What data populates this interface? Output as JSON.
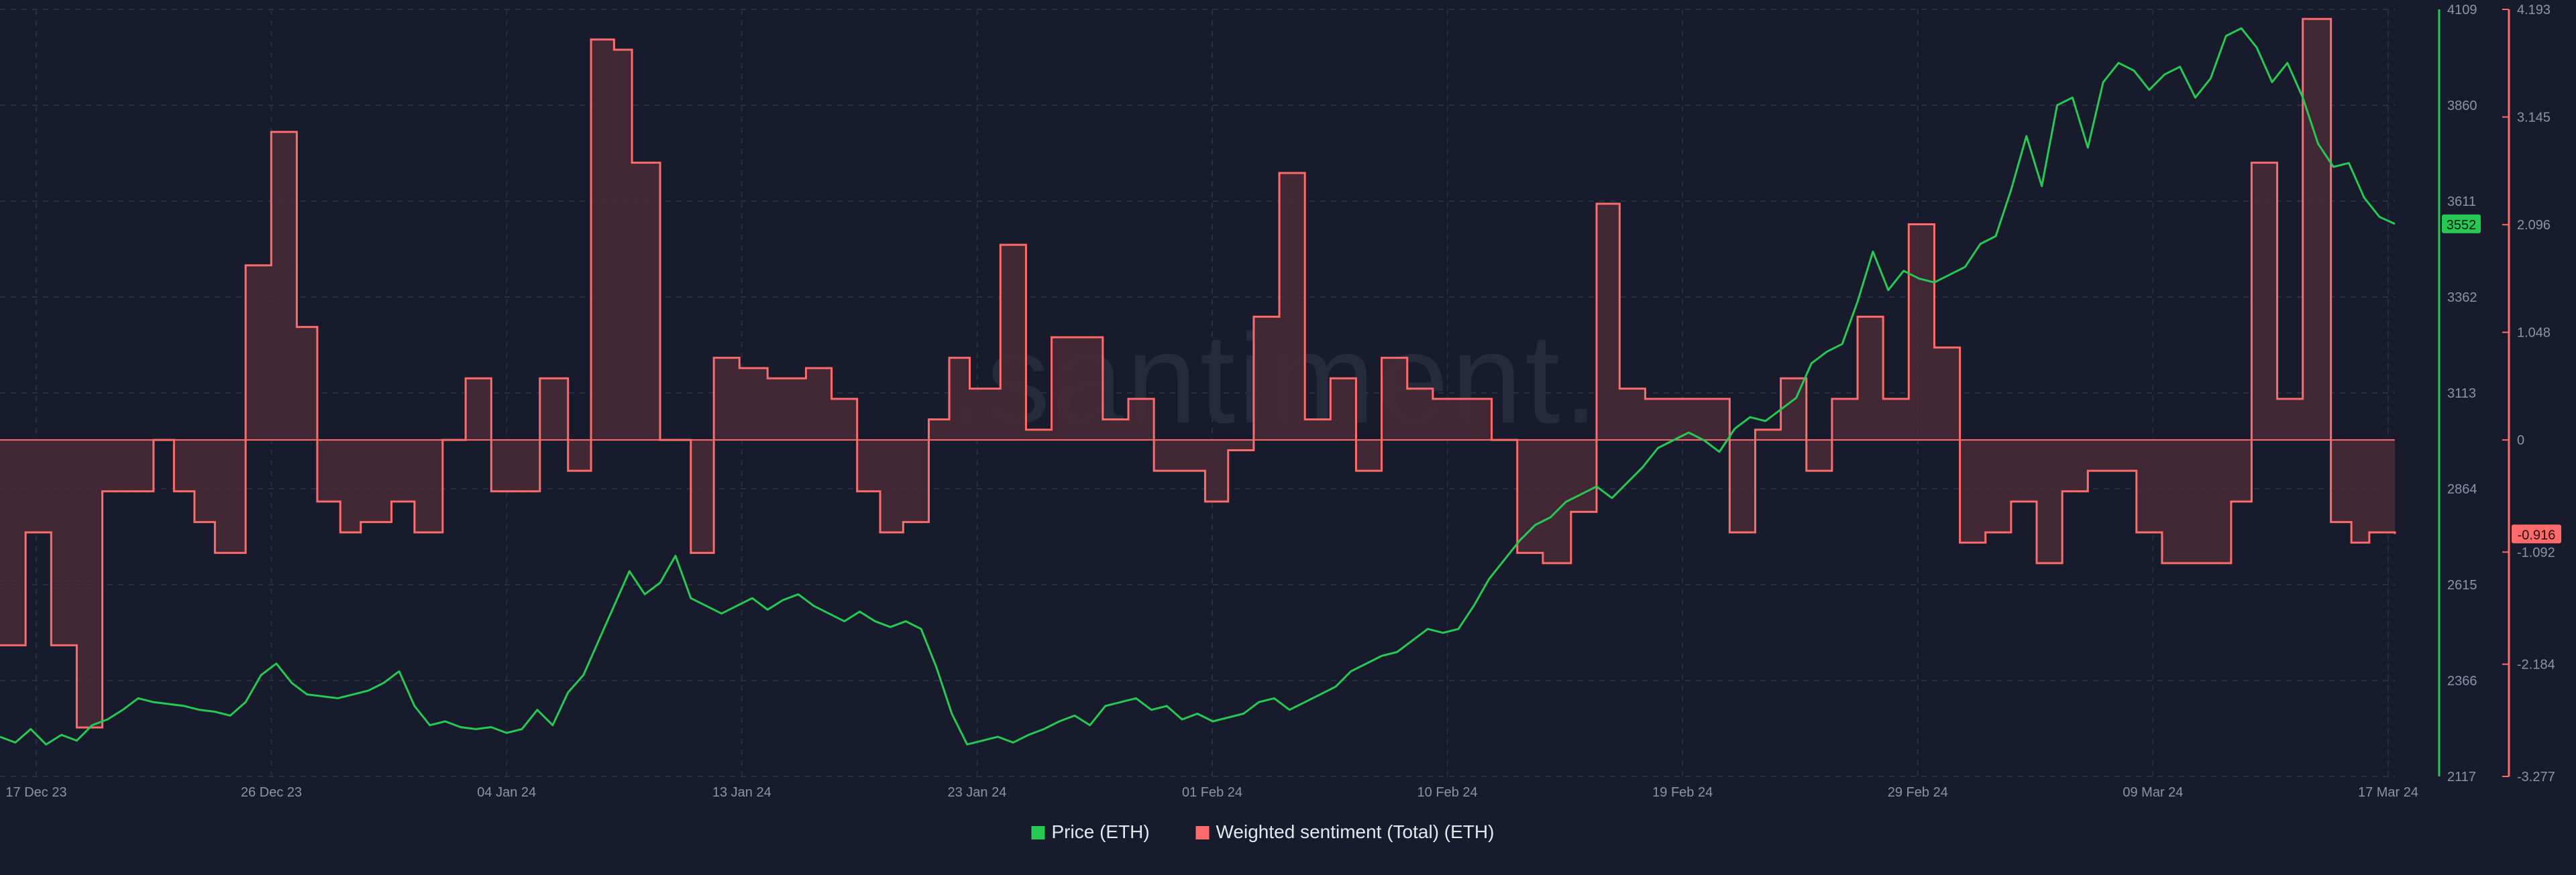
{
  "watermark": ".santiment.",
  "colors": {
    "background": "#181b2b",
    "grid": "#2a2f45",
    "price": "#26c953",
    "sentiment": "#ff6b6b",
    "sentiment_fill": "#4a2a36",
    "axis_text": "#8d93a8",
    "legend_text": "#e6e8f0"
  },
  "chart_data": {
    "type": "line",
    "title": "",
    "xlabel": "",
    "x_ticks": [
      "17 Dec 23",
      "26 Dec 23",
      "04 Jan 24",
      "13 Jan 24",
      "23 Jan 24",
      "01 Feb 24",
      "10 Feb 24",
      "19 Feb 24",
      "29 Feb 24",
      "09 Mar 24",
      "17 Mar 24"
    ],
    "grid": true,
    "legend_position": "bottom-center",
    "y_axes": {
      "price": {
        "ticks": [
          "4109",
          "3860",
          "3611",
          "3362",
          "3113",
          "2864",
          "2615",
          "2366",
          "2117"
        ],
        "ylim": [
          2117,
          4109
        ],
        "current_value": "3552"
      },
      "sentiment": {
        "ticks": [
          "4.193",
          "3.145",
          "2.096",
          "1.048",
          "0",
          "-1.092",
          "-2.184",
          "-3.277"
        ],
        "ylim": [
          -3.277,
          4.193
        ],
        "current_value": "-0.916"
      }
    },
    "series": [
      {
        "name": "Price (ETH)",
        "axis": "price",
        "type": "line",
        "points": [
          [
            0,
            2220
          ],
          [
            6,
            2205
          ],
          [
            12,
            2240
          ],
          [
            18,
            2200
          ],
          [
            24,
            2225
          ],
          [
            30,
            2210
          ],
          [
            36,
            2250
          ],
          [
            42,
            2265
          ],
          [
            48,
            2290
          ],
          [
            54,
            2320
          ],
          [
            60,
            2310
          ],
          [
            66,
            2305
          ],
          [
            72,
            2300
          ],
          [
            78,
            2290
          ],
          [
            84,
            2285
          ],
          [
            90,
            2275
          ],
          [
            96,
            2310
          ],
          [
            102,
            2380
          ],
          [
            108,
            2410
          ],
          [
            114,
            2360
          ],
          [
            120,
            2330
          ],
          [
            126,
            2325
          ],
          [
            132,
            2320
          ],
          [
            138,
            2330
          ],
          [
            144,
            2340
          ],
          [
            150,
            2360
          ],
          [
            156,
            2390
          ],
          [
            162,
            2300
          ],
          [
            168,
            2250
          ],
          [
            174,
            2260
          ],
          [
            180,
            2245
          ],
          [
            186,
            2240
          ],
          [
            192,
            2245
          ],
          [
            198,
            2230
          ],
          [
            204,
            2240
          ],
          [
            210,
            2290
          ],
          [
            216,
            2250
          ],
          [
            222,
            2335
          ],
          [
            228,
            2380
          ],
          [
            234,
            2470
          ],
          [
            240,
            2560
          ],
          [
            246,
            2650
          ],
          [
            252,
            2590
          ],
          [
            258,
            2620
          ],
          [
            264,
            2690
          ],
          [
            270,
            2580
          ],
          [
            276,
            2560
          ],
          [
            282,
            2540
          ],
          [
            288,
            2560
          ],
          [
            294,
            2580
          ],
          [
            300,
            2550
          ],
          [
            306,
            2575
          ],
          [
            312,
            2590
          ],
          [
            318,
            2560
          ],
          [
            324,
            2540
          ],
          [
            330,
            2520
          ],
          [
            336,
            2545
          ],
          [
            342,
            2520
          ],
          [
            348,
            2505
          ],
          [
            354,
            2520
          ],
          [
            360,
            2500
          ],
          [
            366,
            2400
          ],
          [
            372,
            2280
          ],
          [
            378,
            2200
          ],
          [
            384,
            2210
          ],
          [
            390,
            2220
          ],
          [
            396,
            2205
          ],
          [
            402,
            2225
          ],
          [
            408,
            2240
          ],
          [
            414,
            2260
          ],
          [
            420,
            2275
          ],
          [
            426,
            2250
          ],
          [
            432,
            2300
          ],
          [
            438,
            2310
          ],
          [
            444,
            2320
          ],
          [
            450,
            2290
          ],
          [
            456,
            2300
          ],
          [
            462,
            2265
          ],
          [
            468,
            2280
          ],
          [
            474,
            2260
          ],
          [
            480,
            2270
          ],
          [
            486,
            2280
          ],
          [
            492,
            2310
          ],
          [
            498,
            2320
          ],
          [
            504,
            2290
          ],
          [
            510,
            2310
          ],
          [
            516,
            2330
          ],
          [
            522,
            2350
          ],
          [
            528,
            2390
          ],
          [
            534,
            2410
          ],
          [
            540,
            2430
          ],
          [
            546,
            2440
          ],
          [
            552,
            2470
          ],
          [
            558,
            2500
          ],
          [
            564,
            2490
          ],
          [
            570,
            2500
          ],
          [
            576,
            2560
          ],
          [
            582,
            2630
          ],
          [
            588,
            2680
          ],
          [
            594,
            2730
          ],
          [
            600,
            2770
          ],
          [
            606,
            2790
          ],
          [
            612,
            2830
          ],
          [
            618,
            2850
          ],
          [
            624,
            2870
          ],
          [
            630,
            2840
          ],
          [
            636,
            2880
          ],
          [
            642,
            2920
          ],
          [
            648,
            2970
          ],
          [
            654,
            2990
          ],
          [
            660,
            3010
          ],
          [
            666,
            2990
          ],
          [
            672,
            2960
          ],
          [
            678,
            3020
          ],
          [
            684,
            3050
          ],
          [
            690,
            3040
          ],
          [
            696,
            3070
          ],
          [
            702,
            3100
          ],
          [
            708,
            3190
          ],
          [
            714,
            3220
          ],
          [
            720,
            3240
          ],
          [
            726,
            3350
          ],
          [
            732,
            3480
          ],
          [
            738,
            3380
          ],
          [
            744,
            3430
          ],
          [
            750,
            3410
          ],
          [
            756,
            3400
          ],
          [
            762,
            3420
          ],
          [
            768,
            3440
          ],
          [
            774,
            3500
          ],
          [
            780,
            3520
          ],
          [
            786,
            3640
          ],
          [
            792,
            3780
          ],
          [
            798,
            3650
          ],
          [
            804,
            3860
          ],
          [
            810,
            3880
          ],
          [
            816,
            3750
          ],
          [
            822,
            3920
          ],
          [
            828,
            3970
          ],
          [
            834,
            3950
          ],
          [
            840,
            3900
          ],
          [
            846,
            3940
          ],
          [
            852,
            3960
          ],
          [
            858,
            3880
          ],
          [
            864,
            3930
          ],
          [
            870,
            4040
          ],
          [
            876,
            4060
          ],
          [
            882,
            4010
          ],
          [
            888,
            3920
          ],
          [
            894,
            3970
          ],
          [
            900,
            3880
          ],
          [
            906,
            3760
          ],
          [
            912,
            3700
          ],
          [
            918,
            3710
          ],
          [
            924,
            3620
          ],
          [
            930,
            3570
          ],
          [
            936,
            3552
          ]
        ]
      },
      {
        "name": "Weighted sentiment (Total) (ETH)",
        "axis": "sentiment",
        "type": "step-area",
        "points": [
          [
            0,
            -2.0
          ],
          [
            10,
            -0.9
          ],
          [
            20,
            -2.0
          ],
          [
            30,
            -2.8
          ],
          [
            40,
            -0.5
          ],
          [
            60,
            0
          ],
          [
            68,
            -0.5
          ],
          [
            76,
            -0.8
          ],
          [
            84,
            -1.1
          ],
          [
            96,
            1.7
          ],
          [
            106,
            3.0
          ],
          [
            116,
            1.1
          ],
          [
            124,
            -0.6
          ],
          [
            133,
            -0.9
          ],
          [
            141,
            -0.8
          ],
          [
            153,
            -0.6
          ],
          [
            162,
            -0.9
          ],
          [
            173,
            0
          ],
          [
            182,
            0.6
          ],
          [
            192,
            -0.5
          ],
          [
            202,
            -0.5
          ],
          [
            211,
            0.6
          ],
          [
            222,
            -0.3
          ],
          [
            231,
            3.9
          ],
          [
            240,
            3.8
          ],
          [
            247,
            2.7
          ],
          [
            258,
            0
          ],
          [
            270,
            -1.1
          ],
          [
            279,
            0.8
          ],
          [
            289,
            0.7
          ],
          [
            300,
            0.6
          ],
          [
            315,
            0.7
          ],
          [
            325,
            0.4
          ],
          [
            335,
            -0.5
          ],
          [
            344,
            -0.9
          ],
          [
            353,
            -0.8
          ],
          [
            363,
            0.2
          ],
          [
            371,
            0.8
          ],
          [
            379,
            0.5
          ],
          [
            385,
            0.5
          ],
          [
            391,
            1.9
          ],
          [
            401,
            0.1
          ],
          [
            411,
            1.0
          ],
          [
            421,
            1.0
          ],
          [
            431,
            0.2
          ],
          [
            441,
            0.4
          ],
          [
            451,
            -0.3
          ],
          [
            461,
            -0.3
          ],
          [
            471,
            -0.6
          ],
          [
            480,
            -0.1
          ],
          [
            490,
            1.2
          ],
          [
            500,
            2.6
          ],
          [
            510,
            0.2
          ],
          [
            520,
            0.6
          ],
          [
            530,
            -0.3
          ],
          [
            540,
            0.8
          ],
          [
            550,
            0.5
          ],
          [
            560,
            0.4
          ],
          [
            570,
            0.4
          ],
          [
            583,
            0
          ],
          [
            593,
            -1.1
          ],
          [
            603,
            -1.2
          ],
          [
            614,
            -0.7
          ],
          [
            624,
            2.3
          ],
          [
            633,
            0.5
          ],
          [
            643,
            0.4
          ],
          [
            653,
            0.4
          ],
          [
            664,
            0.4
          ],
          [
            676,
            -0.9
          ],
          [
            686,
            0.1
          ],
          [
            696,
            0.6
          ],
          [
            706,
            -0.3
          ],
          [
            716,
            0.4
          ],
          [
            726,
            1.2
          ],
          [
            736,
            0.4
          ],
          [
            746,
            2.1
          ],
          [
            756,
            0.9
          ],
          [
            766,
            -1.0
          ],
          [
            776,
            -0.9
          ],
          [
            786,
            -0.6
          ],
          [
            796,
            -1.2
          ],
          [
            806,
            -0.5
          ],
          [
            816,
            -0.3
          ],
          [
            826,
            -0.3
          ],
          [
            835,
            -0.9
          ],
          [
            845,
            -1.2
          ],
          [
            855,
            -1.2
          ],
          [
            864,
            -1.2
          ],
          [
            872,
            -0.6
          ],
          [
            880,
            2.7
          ],
          [
            890,
            0.4
          ],
          [
            900,
            4.1
          ],
          [
            911,
            -0.8
          ],
          [
            919,
            -1.0
          ],
          [
            926,
            -0.9
          ],
          [
            936,
            -0.916
          ]
        ]
      }
    ]
  },
  "legend": [
    {
      "label": "Price (ETH)",
      "color": "#26c953"
    },
    {
      "label": "Weighted sentiment (Total) (ETH)",
      "color": "#ff6b6b"
    }
  ]
}
